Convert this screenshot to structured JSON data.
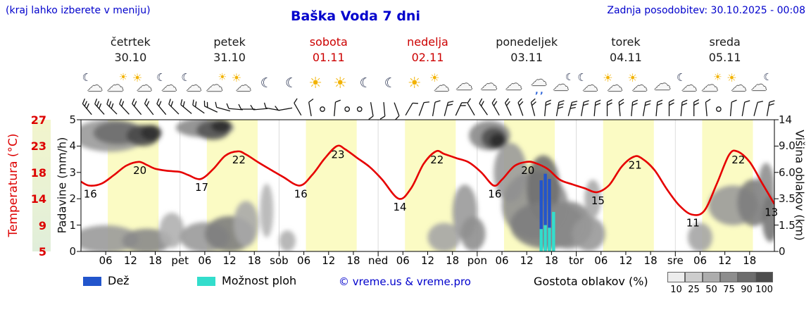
{
  "header": {
    "hint": "(kraj lahko izberete v meniju)",
    "title": "Baška Voda 7 dni",
    "updated": "Zadnja posodobitev: 30.10.2025 - 00:08"
  },
  "axes": {
    "temp_label": "Temperatura (°C)",
    "temp_ticks": [
      "27",
      "23",
      "18",
      "14",
      "9",
      "5"
    ],
    "precip_label": "Padavine (mm/h)",
    "precip_ticks": [
      "5",
      "4",
      "3",
      "2",
      "1",
      "0"
    ],
    "cloud_label": "Višina oblakov (km)",
    "cloud_ticks": [
      "14",
      "9.0",
      "6.0",
      "3.5",
      "1.5",
      "0"
    ]
  },
  "days": [
    {
      "name": "četrtek",
      "date": "30.10",
      "red": false,
      "icons": [
        "moon-cloud",
        "cloud-sun",
        "sun-cloud",
        "moon-cloud"
      ]
    },
    {
      "name": "petek",
      "date": "31.10",
      "red": false,
      "icons": [
        "moon-cloud",
        "cloud-sun",
        "sun-cloud",
        "moon"
      ]
    },
    {
      "name": "sobota",
      "date": "01.11",
      "red": true,
      "icons": [
        "moon",
        "sun",
        "sun",
        "moon"
      ]
    },
    {
      "name": "nedelja",
      "date": "02.11",
      "red": true,
      "icons": [
        "moon",
        "sun",
        "sun-cloud",
        "cloud"
      ]
    },
    {
      "name": "ponedeljek",
      "date": "03.11",
      "red": false,
      "icons": [
        "cloud",
        "cloud",
        "rain-cloud",
        "cloud-moon"
      ]
    },
    {
      "name": "torek",
      "date": "04.11",
      "red": false,
      "icons": [
        "moon-cloud",
        "sun-cloud",
        "sun-cloud",
        "cloud"
      ]
    },
    {
      "name": "sreda",
      "date": "05.11",
      "red": false,
      "icons": [
        "moon-cloud",
        "cloud-sun",
        "sun-cloud",
        "cloud-moon"
      ]
    }
  ],
  "xaxis": {
    "hour_ticks": [
      "06",
      "12",
      "18"
    ],
    "day_abbrs": [
      "pet",
      "sob",
      "ned",
      "pon",
      "tor",
      "sre"
    ]
  },
  "legend": {
    "rain": "Dež",
    "showers": "Možnost ploh",
    "copyright": "© vreme.us & vreme.pro",
    "cloud_density": "Gostota oblakov (%)",
    "density_ticks": [
      "10",
      "25",
      "50",
      "75",
      "90",
      "100"
    ],
    "density_colors": [
      "#ececec",
      "#cdcdcd",
      "#adadad",
      "#8d8d8d",
      "#6d6d6d",
      "#4d4d4d"
    ]
  },
  "colors": {
    "accent_blue": "#0000cc",
    "temp_red": "#e60000",
    "rain_blue": "#2255cc",
    "shower_cyan": "#33ddcc",
    "day_band": "#fbfbc4",
    "frame": "#000000"
  },
  "chart_data": {
    "type": "line",
    "title": "Baška Voda 7 dni",
    "x_axis": {
      "unit": "hour",
      "range": [
        0,
        168
      ],
      "days": 7
    },
    "daylight_bands": {
      "from_hour": 6.5,
      "to_hour": 18.8
    },
    "temperature_c": {
      "axis_ticks": [
        27,
        23,
        18,
        14,
        9,
        5
      ],
      "points": [
        [
          0,
          16.6
        ],
        [
          2,
          16
        ],
        [
          5,
          16.3
        ],
        [
          8,
          17.6
        ],
        [
          11,
          19.3
        ],
        [
          14,
          20
        ],
        [
          16,
          19.4
        ],
        [
          18,
          18.7
        ],
        [
          21,
          18.3
        ],
        [
          24,
          18.1
        ],
        [
          26,
          17.6
        ],
        [
          29,
          17
        ],
        [
          32,
          18.6
        ],
        [
          35,
          21.2
        ],
        [
          38,
          22
        ],
        [
          40,
          21.4
        ],
        [
          43,
          19.9
        ],
        [
          46,
          18.5
        ],
        [
          49,
          17.3
        ],
        [
          53,
          16
        ],
        [
          56,
          17.6
        ],
        [
          59,
          20.6
        ],
        [
          62,
          23
        ],
        [
          64,
          22.4
        ],
        [
          67,
          20.7
        ],
        [
          70,
          19
        ],
        [
          73,
          16.9
        ],
        [
          77,
          14
        ],
        [
          80,
          15.6
        ],
        [
          83,
          19.6
        ],
        [
          86,
          22
        ],
        [
          88,
          21.5
        ],
        [
          91,
          20.7
        ],
        [
          94,
          19.9
        ],
        [
          97,
          18
        ],
        [
          100,
          16
        ],
        [
          102,
          16.9
        ],
        [
          105,
          19.2
        ],
        [
          108,
          20
        ],
        [
          110,
          19.8
        ],
        [
          113,
          18.7
        ],
        [
          116,
          16.9
        ],
        [
          119,
          16.2
        ],
        [
          122,
          15.6
        ],
        [
          125,
          15
        ],
        [
          128,
          16.1
        ],
        [
          131,
          19.1
        ],
        [
          134,
          21
        ],
        [
          136,
          20.6
        ],
        [
          139,
          18.4
        ],
        [
          142,
          15.4
        ],
        [
          145,
          12.7
        ],
        [
          148,
          11
        ],
        [
          151,
          11.7
        ],
        [
          154,
          16.2
        ],
        [
          157,
          21.3
        ],
        [
          159,
          22
        ],
        [
          162,
          20
        ],
        [
          165,
          16.4
        ],
        [
          168,
          13
        ]
      ],
      "extreme_labels": [
        {
          "hour": 2,
          "value": 16
        },
        {
          "hour": 14,
          "value": 20
        },
        {
          "hour": 29,
          "value": 17
        },
        {
          "hour": 38,
          "value": 22
        },
        {
          "hour": 53,
          "value": 16
        },
        {
          "hour": 62,
          "value": 23
        },
        {
          "hour": 77,
          "value": 14
        },
        {
          "hour": 86,
          "value": 22
        },
        {
          "hour": 100,
          "value": 16
        },
        {
          "hour": 108,
          "value": 20
        },
        {
          "hour": 125,
          "value": 15
        },
        {
          "hour": 134,
          "value": 21
        },
        {
          "hour": 148,
          "value": 11
        },
        {
          "hour": 159,
          "value": 22
        },
        {
          "hour": 167,
          "value": 13
        }
      ]
    },
    "precip_mm_h": {
      "axis_ticks": [
        5,
        4,
        3,
        2,
        1,
        0
      ],
      "rain_bars": [
        {
          "hour": 111.5,
          "value": 2.7
        },
        {
          "hour": 112.5,
          "value": 2.95
        },
        {
          "hour": 113.5,
          "value": 2.75
        }
      ],
      "shower_bars": [
        {
          "hour": 111.5,
          "value": 0.85
        },
        {
          "hour": 112.5,
          "value": 1.0
        },
        {
          "hour": 113.5,
          "value": 0.9
        },
        {
          "hour": 114.5,
          "value": 1.5
        }
      ]
    },
    "cloud_height_km": {
      "axis_ticks_km": [
        14,
        9.0,
        6.0,
        3.5,
        1.5,
        0
      ],
      "density_legend_pct": [
        10,
        25,
        50,
        75,
        90,
        100
      ],
      "blobs": [
        {
          "hour": 7,
          "km": 11,
          "rh": 9,
          "rkm": 2.8,
          "shade": "#9a9a9a"
        },
        {
          "hour": 9,
          "km": 11.5,
          "rh": 6,
          "rkm": 2.2,
          "shade": "#6e6e6e"
        },
        {
          "hour": 15,
          "km": 11,
          "rh": 4,
          "rkm": 2.0,
          "shade": "#4a4a4a"
        },
        {
          "hour": 17,
          "km": 11.5,
          "rh": 2.5,
          "rkm": 1.5,
          "shade": "#303030"
        },
        {
          "hour": 6,
          "km": 0.7,
          "rh": 8,
          "rkm": 0.9,
          "shade": "#9a9a9a"
        },
        {
          "hour": 16,
          "km": 0.6,
          "rh": 6,
          "rkm": 0.8,
          "shade": "#8a8a8a"
        },
        {
          "hour": 22,
          "km": 1.2,
          "rh": 3,
          "rkm": 1.1,
          "shade": "#b0b0b0"
        },
        {
          "hour": 30,
          "km": 12.5,
          "rh": 7,
          "rkm": 2.2,
          "shade": "#8a8a8a"
        },
        {
          "hour": 32,
          "km": 12,
          "rh": 4,
          "rkm": 1.8,
          "shade": "#565656"
        },
        {
          "hour": 34,
          "km": 12.8,
          "rh": 2.5,
          "rkm": 1.2,
          "shade": "#2e2e2e"
        },
        {
          "hour": 30,
          "km": 0.8,
          "rh": 6,
          "rkm": 1.0,
          "shade": "#9a9a9a"
        },
        {
          "hour": 36,
          "km": 1.0,
          "rh": 6,
          "rkm": 1.2,
          "shade": "#7d7d7d"
        },
        {
          "hour": 40,
          "km": 1.6,
          "rh": 3,
          "rkm": 1.5,
          "shade": "#a8a8a8"
        },
        {
          "hour": 45,
          "km": 2.6,
          "rh": 1.6,
          "rkm": 2.0,
          "shade": "#b5b5b5"
        },
        {
          "hour": 50,
          "km": 0.6,
          "rh": 2,
          "rkm": 0.6,
          "shade": "#b0b0b0"
        },
        {
          "hour": 88,
          "km": 0.8,
          "rh": 4,
          "rkm": 0.9,
          "shade": "#a5a5a5"
        },
        {
          "hour": 93,
          "km": 2.5,
          "rh": 3,
          "rkm": 2.0,
          "shade": "#9a9a9a"
        },
        {
          "hour": 95,
          "km": 1.0,
          "rh": 3,
          "rkm": 1.1,
          "shade": "#8f8f8f"
        },
        {
          "hour": 99,
          "km": 11,
          "rh": 5,
          "rkm": 2.6,
          "shade": "#8a8a8a"
        },
        {
          "hour": 100,
          "km": 10.5,
          "rh": 3,
          "rkm": 1.9,
          "shade": "#4f4f4f"
        },
        {
          "hour": 101,
          "km": 10,
          "rh": 2,
          "rkm": 1.3,
          "shade": "#2b2b2b"
        },
        {
          "hour": 104,
          "km": 6,
          "rh": 4,
          "rkm": 3.0,
          "shade": "#9a9a9a"
        },
        {
          "hour": 110,
          "km": 3,
          "rh": 8,
          "rkm": 2.6,
          "shade": "#8f8f8f"
        },
        {
          "hour": 112,
          "km": 4.5,
          "rh": 4,
          "rkm": 3.0,
          "shade": "#707070"
        },
        {
          "hour": 113,
          "km": 1.5,
          "rh": 9,
          "rkm": 1.6,
          "shade": "#7d7d7d"
        },
        {
          "hour": 118,
          "km": 1.5,
          "rh": 6,
          "rkm": 1.6,
          "shade": "#8a8a8a"
        },
        {
          "hour": 123,
          "km": 1.0,
          "rh": 4,
          "rkm": 1.1,
          "shade": "#999999"
        },
        {
          "hour": 124,
          "km": 3.5,
          "rh": 2,
          "rkm": 1.6,
          "shade": "#aaaaaa"
        },
        {
          "hour": 150,
          "km": 0.8,
          "rh": 3,
          "rkm": 0.9,
          "shade": "#a5a5a5"
        },
        {
          "hour": 158,
          "km": 3.0,
          "rh": 6,
          "rkm": 1.6,
          "shade": "#9a9a9a"
        },
        {
          "hour": 163,
          "km": 3.2,
          "rh": 4,
          "rkm": 1.9,
          "shade": "#7d7d7d"
        },
        {
          "hour": 166,
          "km": 4.5,
          "rh": 2,
          "rkm": 2.3,
          "shade": "#8f8f8f"
        },
        {
          "hour": 167,
          "km": 2.0,
          "rh": 2,
          "rkm": 1.6,
          "shade": "#777777"
        }
      ]
    },
    "wind_barbs": [
      [
        -40,
        3
      ],
      [
        -42,
        3
      ],
      [
        -45,
        3
      ],
      [
        -43,
        2
      ],
      [
        -40,
        2
      ],
      [
        -38,
        2
      ],
      [
        -40,
        2
      ],
      [
        -45,
        2
      ],
      [
        -50,
        2
      ],
      [
        -55,
        2
      ],
      [
        -65,
        2
      ],
      [
        -75,
        1
      ],
      [
        -85,
        1
      ],
      [
        -90,
        1
      ],
      [
        -95,
        1
      ],
      [
        -80,
        1
      ],
      [
        -100,
        1
      ],
      [
        -30,
        1
      ],
      [
        -10,
        1
      ],
      "c",
      [
        5,
        1
      ],
      "c",
      "c",
      [
        170,
        1
      ],
      [
        175,
        1
      ],
      [
        160,
        1
      ],
      [
        30,
        1
      ],
      [
        20,
        1
      ],
      [
        10,
        1
      ],
      [
        15,
        2
      ],
      [
        25,
        2
      ],
      [
        -30,
        1
      ],
      [
        -35,
        2
      ],
      [
        -30,
        2
      ],
      [
        -25,
        2
      ],
      [
        -20,
        2
      ],
      [
        -15,
        2
      ],
      [
        5,
        2
      ],
      [
        10,
        3
      ],
      [
        15,
        3
      ],
      [
        10,
        2
      ],
      [
        5,
        2
      ],
      [
        0,
        2
      ],
      [
        -5,
        2
      ],
      [
        5,
        2
      ],
      [
        10,
        2
      ],
      [
        5,
        2
      ],
      [
        0,
        2
      ],
      [
        5,
        2
      ],
      [
        0,
        2
      ],
      [
        -5,
        1
      ],
      "c",
      [
        5,
        1
      ],
      [
        10,
        1
      ],
      [
        15,
        1
      ],
      [
        10,
        2
      ]
    ]
  }
}
